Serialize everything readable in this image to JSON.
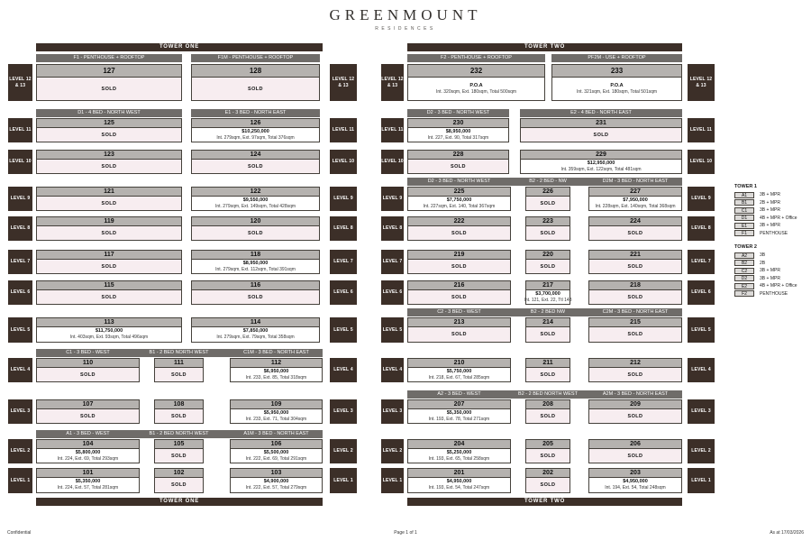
{
  "brand": {
    "name": "GREENMOUNT",
    "tagline": "RESIDENCES"
  },
  "sold_label": "SOLD",
  "colors": {
    "dark_brown": "#3c2f28",
    "section_gray": "#6f6c69",
    "unit_header_gray": "#b5b2af",
    "sold_pink": "#f7edf0",
    "available_white": "#ffffff"
  },
  "levels": {
    "12": [
      "LEVEL 12",
      "& 13"
    ],
    "11": [
      "LEVEL 11"
    ],
    "10": [
      "LEVEL 10"
    ],
    "9": [
      "LEVEL 9"
    ],
    "8": [
      "LEVEL 8"
    ],
    "7": [
      "LEVEL 7"
    ],
    "6": [
      "LEVEL 6"
    ],
    "5": [
      "LEVEL 5"
    ],
    "4": [
      "LEVEL 4"
    ],
    "3": [
      "LEVEL 3"
    ],
    "2": [
      "LEVEL 2"
    ],
    "1": [
      "LEVEL 1"
    ]
  },
  "towers": [
    {
      "name": "TOWER ONE",
      "rows": [
        {
          "level": "12",
          "colset": "c2",
          "headers": [
            "F1 - PENTHOUSE + ROOFTOP",
            "F1M - PENTHOUSE + ROOFTOP"
          ],
          "units": [
            {
              "n": "127",
              "sold": true
            },
            {
              "n": "128",
              "sold": true
            }
          ]
        },
        {
          "level": "11",
          "colset": "c2",
          "headers": [
            "D1 - 4 BED - NORTH WEST",
            "E1 - 3 BED - NORTH EAST"
          ],
          "units": [
            {
              "n": "125",
              "sold": true
            },
            {
              "n": "126",
              "price": "$10,250,000",
              "areas": "Int. 279sqm, Ext. 97sqm, Total 376sqm"
            }
          ]
        },
        {
          "level": "10",
          "colset": "c2",
          "units": [
            {
              "n": "123",
              "sold": true
            },
            {
              "n": "124",
              "sold": true
            }
          ]
        },
        {
          "level": "9",
          "colset": "c2",
          "units": [
            {
              "n": "121",
              "sold": true
            },
            {
              "n": "122",
              "price": "$9,550,000",
              "areas": "Int. 279sqm, Ext. 149sqm, Total 428sqm"
            }
          ]
        },
        {
          "level": "8",
          "colset": "c2",
          "units": [
            {
              "n": "119",
              "sold": true
            },
            {
              "n": "120",
              "sold": true
            }
          ]
        },
        {
          "level": "7",
          "colset": "c2",
          "units": [
            {
              "n": "117",
              "sold": true
            },
            {
              "n": "118",
              "price": "$8,950,000",
              "areas": "Int. 279sqm, Ext. 112sqm, Total 391sqm"
            }
          ]
        },
        {
          "level": "6",
          "colset": "c2",
          "units": [
            {
              "n": "115",
              "sold": true
            },
            {
              "n": "116",
              "sold": true
            }
          ]
        },
        {
          "level": "5",
          "colset": "c2",
          "units": [
            {
              "n": "113",
              "price": "$11,750,000",
              "areas": "Int. 403sqm, Ext. 93sqm, Total 496sqm"
            },
            {
              "n": "114",
              "price": "$7,850,000",
              "areas": "Int. 279sqm, Ext. 79sqm, Total 358sqm"
            }
          ]
        },
        {
          "level": "4",
          "colset": "c3",
          "headers": [
            "C1 - 3 BED - WEST",
            "B1 - 2 BED NORTH WEST",
            "C1M - 3 BED - NORTH EAST"
          ],
          "units": [
            {
              "n": "110",
              "sold": true
            },
            {
              "n": "111",
              "sold": true
            },
            {
              "n": "112",
              "price": "$6,950,000",
              "areas": "Int. 233, Ext. 85, Total 318sqm"
            }
          ]
        },
        {
          "level": "3",
          "colset": "c3",
          "units": [
            {
              "n": "107",
              "sold": true
            },
            {
              "n": "108",
              "sold": true
            },
            {
              "n": "109",
              "price": "$5,950,000",
              "areas": "Int. 233, Ext. 71, Total 304sqm"
            }
          ]
        },
        {
          "level": "2",
          "colset": "c3",
          "headers": [
            "A1 - 3 BED - WEST",
            "B1 - 2 BED NORTH WEST",
            "A1M - 3 BED - NORTH EAST"
          ],
          "units": [
            {
              "n": "104",
              "price": "$5,800,000",
              "areas": "Int. 224, Ext. 69, Total 293sqm"
            },
            {
              "n": "105",
              "sold": true
            },
            {
              "n": "106",
              "price": "$5,500,000",
              "areas": "Int. 222, Ext. 69, Total 291sqm"
            }
          ]
        },
        {
          "level": "1",
          "colset": "c3",
          "units": [
            {
              "n": "101",
              "price": "$5,350,000",
              "areas": "Int. 224, Ext. 57, Total 281sqm"
            },
            {
              "n": "102",
              "sold": true
            },
            {
              "n": "103",
              "price": "$4,900,000",
              "areas": "Int. 222, Ext. 57, Total 279sqm"
            }
          ]
        }
      ]
    },
    {
      "name": "TOWER TWO",
      "rows": [
        {
          "level": "12",
          "colset": "c2eq",
          "headers": [
            "F2 - PENTHOUSE + ROOFTOP",
            "PF2M - USE + ROOFTOP"
          ],
          "units": [
            {
              "n": "232",
              "price": "P.O.A",
              "areas": "Int. 320sqm, Ext. 180sqm, Total 500sqm"
            },
            {
              "n": "233",
              "price": "P.O.A",
              "areas": "Int. 321sqm, Ext. 180sqm, Total 501sqm"
            }
          ]
        },
        {
          "level": "11",
          "colset": "c2",
          "headers": [
            "D2 - 3 BED - NORTH WEST",
            "E2 - 4 BED - NORTH EAST"
          ],
          "units": [
            {
              "n": "230",
              "price": "$8,950,000",
              "areas": "Int. 227, Ext. 90, Total 317sqm"
            },
            {
              "n": "231",
              "sold": true
            }
          ]
        },
        {
          "level": "10",
          "colset": "c2",
          "units": [
            {
              "n": "228",
              "sold": true
            },
            {
              "n": "229",
              "price": "$12,950,000",
              "areas": "Int. 359sqm, Ext. 122sqm, Total 481sqm"
            }
          ]
        },
        {
          "level": "9",
          "colset": "c3",
          "headers": [
            "D2 - 3 BED - NORTH WEST",
            "B2 - 2 BED - NW",
            "D2M - 3 BED - NORTH EAST"
          ],
          "units": [
            {
              "n": "225",
              "price": "$7,750,000",
              "areas": "Int. 227sqm, Ext. 140, Total 367sqm"
            },
            {
              "n": "226",
              "sold": true
            },
            {
              "n": "227",
              "price": "$7,950,000",
              "areas": "Int. 228sqm, Ext. 140sqm, Total 368sqm"
            }
          ]
        },
        {
          "level": "8",
          "colset": "c3",
          "units": [
            {
              "n": "222",
              "sold": true
            },
            {
              "n": "223",
              "sold": true
            },
            {
              "n": "224",
              "sold": true
            }
          ]
        },
        {
          "level": "7",
          "colset": "c3",
          "units": [
            {
              "n": "219",
              "sold": true
            },
            {
              "n": "220",
              "sold": true
            },
            {
              "n": "221",
              "sold": true
            }
          ]
        },
        {
          "level": "6",
          "colset": "c3",
          "units": [
            {
              "n": "216",
              "sold": true
            },
            {
              "n": "217",
              "price": "$3,700,000",
              "areas": "Int. 121, Ext. 22, Ttl 143"
            },
            {
              "n": "218",
              "sold": true
            }
          ]
        },
        {
          "level": "5",
          "colset": "c3",
          "headers": [
            "C2 - 3 BED - WEST",
            "B2 - 2 BED NW",
            "C2M - 3 BED - NORTH EAST"
          ],
          "units": [
            {
              "n": "213",
              "sold": true
            },
            {
              "n": "214",
              "sold": true
            },
            {
              "n": "215",
              "sold": true
            }
          ]
        },
        {
          "level": "4",
          "colset": "c3",
          "units": [
            {
              "n": "210",
              "price": "$5,750,000",
              "areas": "Int. 218, Ext. 67, Total 285sqm"
            },
            {
              "n": "211",
              "sold": true
            },
            {
              "n": "212",
              "sold": true
            }
          ]
        },
        {
          "level": "3",
          "colset": "c3",
          "headers": [
            "A2 - 3 BED - WEST",
            "B2 - 2 BED NORTH WEST",
            "A2M - 3 BED - NORTH EAST"
          ],
          "units": [
            {
              "n": "207",
              "price": "$5,350,000",
              "areas": "Int. 193, Ext. 78, Total 271sqm"
            },
            {
              "n": "208",
              "sold": true
            },
            {
              "n": "209",
              "sold": true
            }
          ]
        },
        {
          "level": "2",
          "colset": "c3",
          "units": [
            {
              "n": "204",
              "price": "$5,250,000",
              "areas": "Int. 193, Ext. 65, Total 258sqm"
            },
            {
              "n": "205",
              "sold": true
            },
            {
              "n": "206",
              "sold": true
            }
          ]
        },
        {
          "level": "1",
          "colset": "c3",
          "units": [
            {
              "n": "201",
              "price": "$4,950,000",
              "areas": "Int. 193, Ext. 54, Total 247sqm"
            },
            {
              "n": "202",
              "sold": true
            },
            {
              "n": "203",
              "price": "$4,950,000",
              "areas": "Int. 194, Ext. 54, Total 248sqm"
            }
          ]
        }
      ]
    }
  ],
  "legend": [
    {
      "title": "TOWER 1",
      "items": [
        {
          "code": "A1",
          "type": "3B + MPR"
        },
        {
          "code": "B1",
          "type": "2B + MPR"
        },
        {
          "code": "C1",
          "type": "3B + MPR"
        },
        {
          "code": "D1",
          "type": "4B + MPR + Office"
        },
        {
          "code": "E1",
          "type": "3B + MPR"
        },
        {
          "code": "F1",
          "type": "PENTHOUSE"
        }
      ]
    },
    {
      "title": "TOWER 2",
      "items": [
        {
          "code": "A2",
          "type": "3B"
        },
        {
          "code": "B2",
          "type": "2B"
        },
        {
          "code": "C2",
          "type": "3B + MPR"
        },
        {
          "code": "D2",
          "type": "3B + MPR"
        },
        {
          "code": "E2",
          "type": "4B + MPR + Office"
        },
        {
          "code": "F2",
          "type": "PENTHOUSE"
        }
      ]
    }
  ],
  "footer": {
    "left": "Confidential",
    "center": "Page 1 of 1",
    "right": "As at 17/03/2026"
  }
}
